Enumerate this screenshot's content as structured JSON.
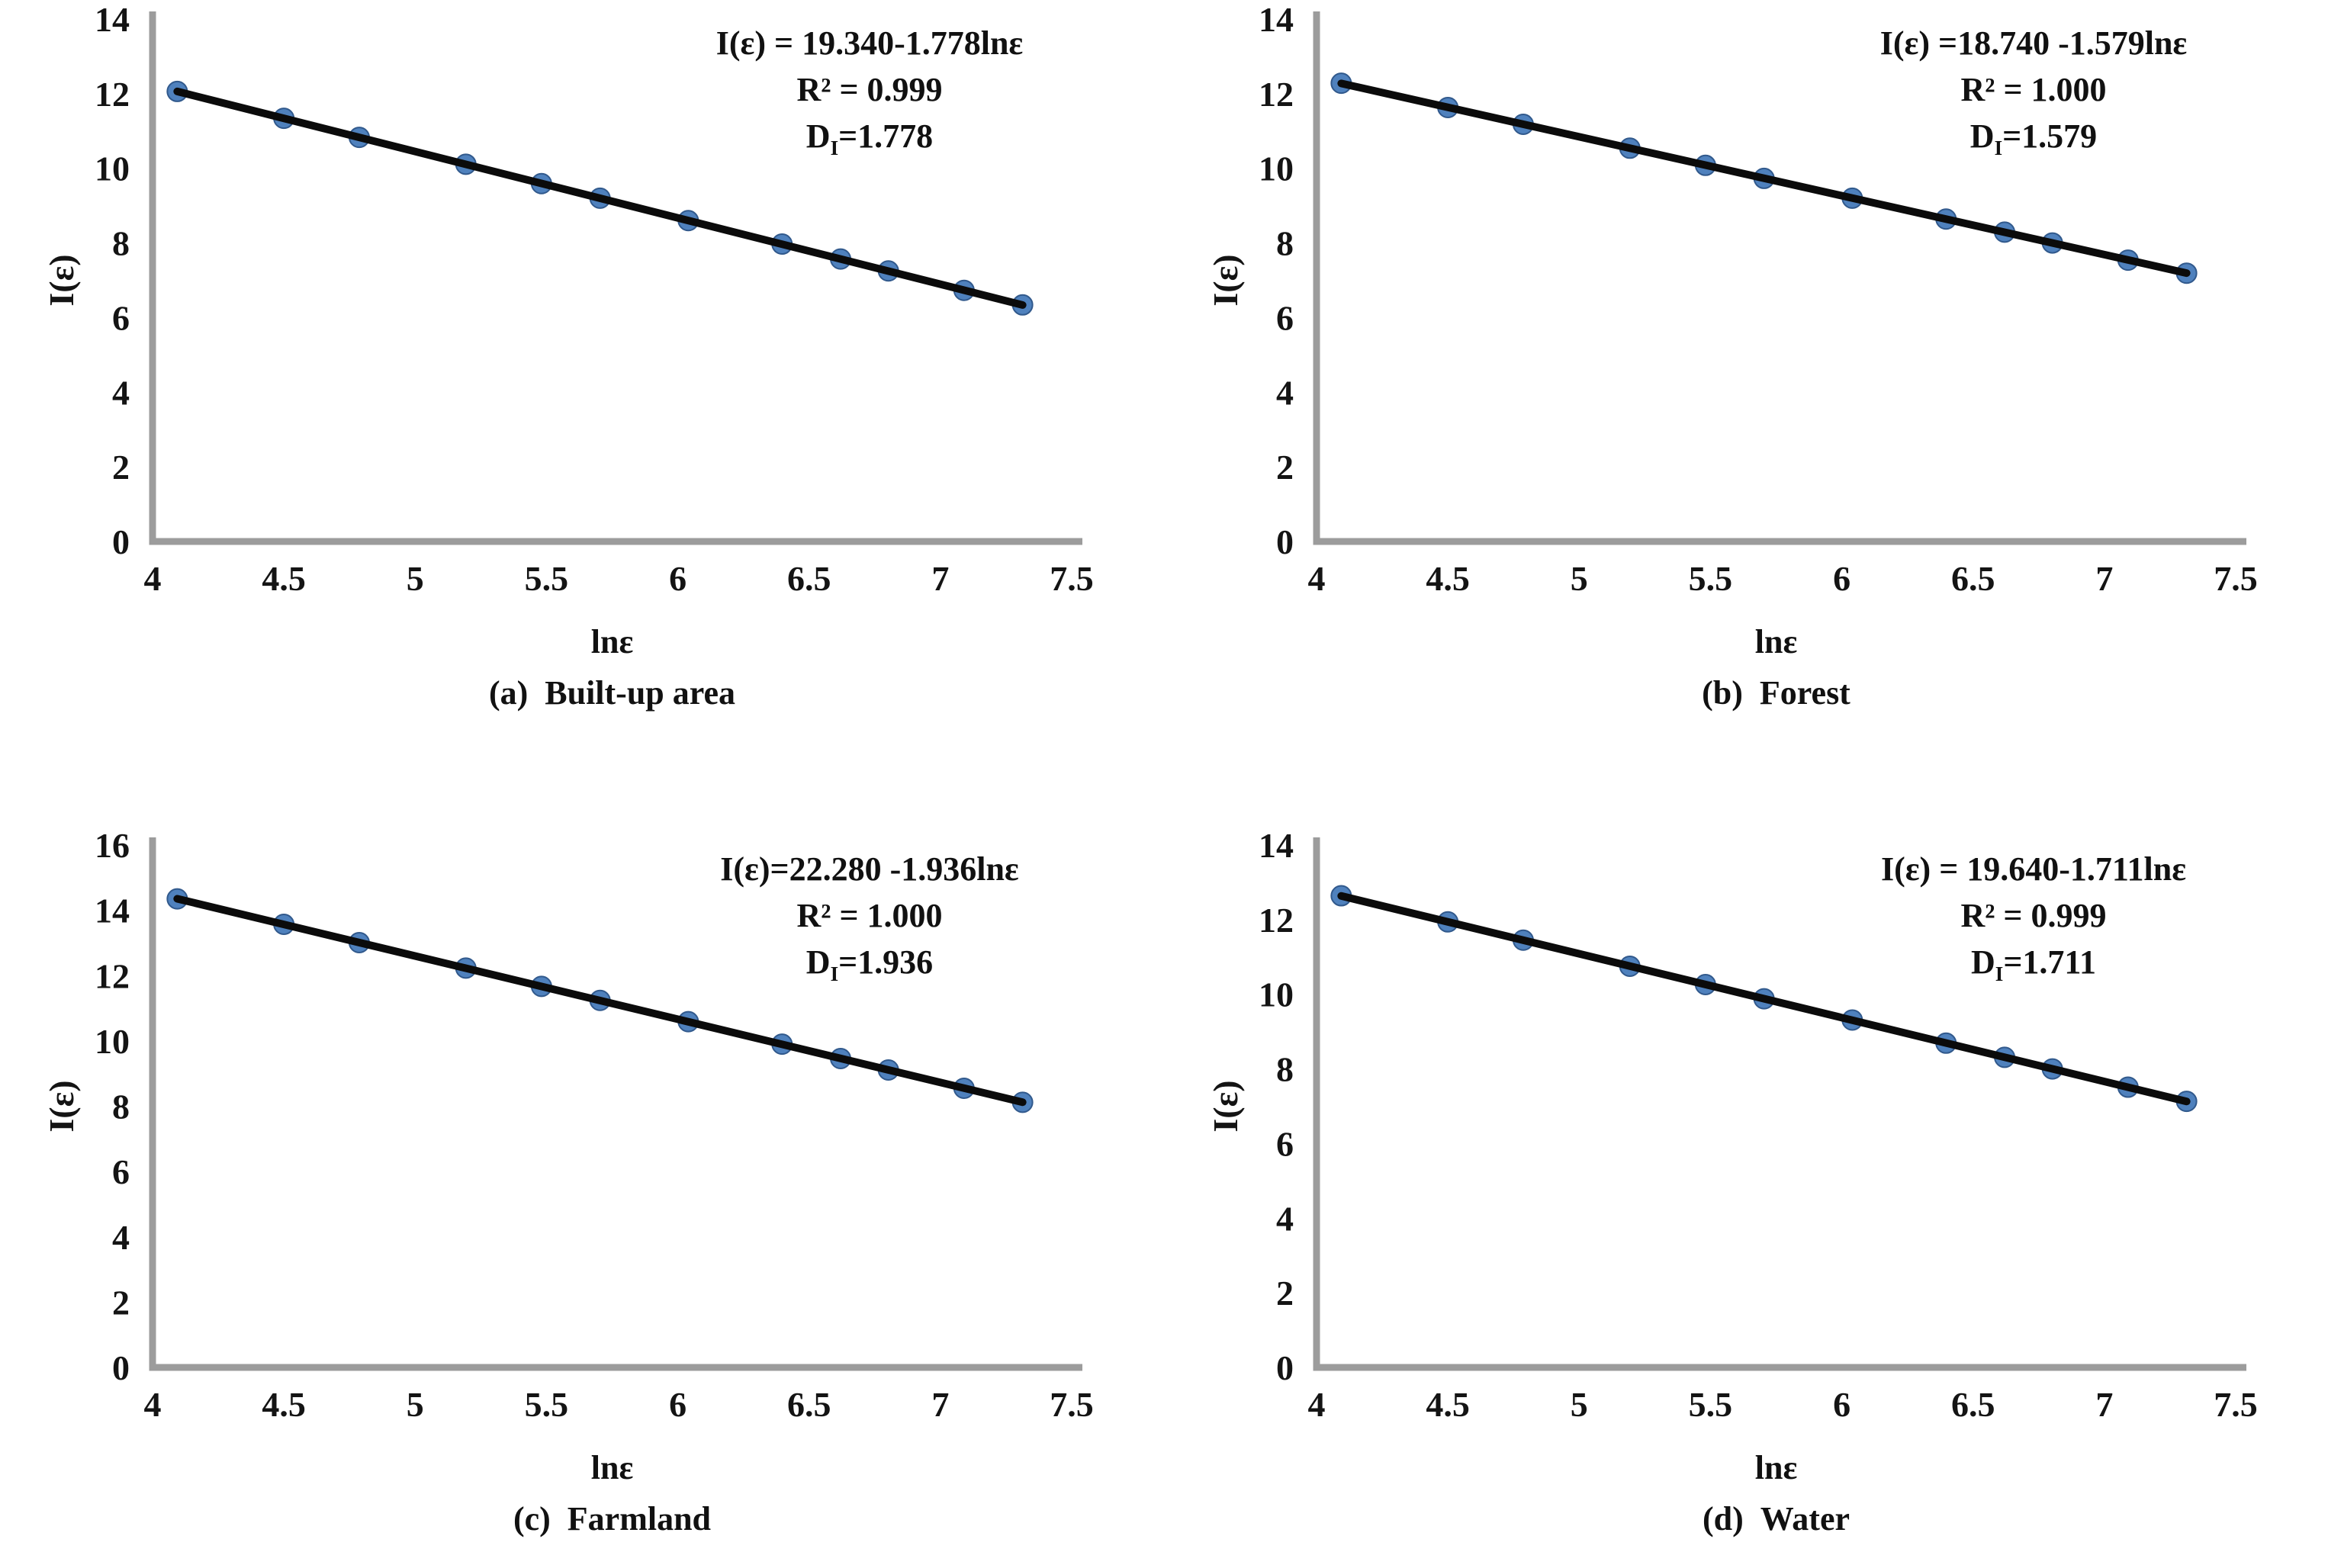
{
  "chart_data": [
    {
      "type": "scatter",
      "panel": "a",
      "caption": {
        "tag": "(a)",
        "text": "Built-up area"
      },
      "xlabel": "lnε",
      "ylabel": "I(ε)",
      "xlim": [
        4,
        7.5
      ],
      "ylim": [
        0,
        14
      ],
      "xticks": [
        "4",
        "4.5",
        "5",
        "5.5",
        "6",
        "6.5",
        "7",
        "7.5"
      ],
      "yticks": [
        0,
        2,
        4,
        6,
        8,
        10,
        12,
        14
      ],
      "x": [
        4.094,
        4.5,
        4.787,
        5.193,
        5.481,
        5.704,
        6.04,
        6.397,
        6.62,
        6.802,
        7.09,
        7.313
      ],
      "y": [
        12.06,
        11.34,
        10.83,
        10.11,
        9.59,
        9.2,
        8.6,
        7.97,
        7.57,
        7.25,
        6.73,
        6.34
      ],
      "fit": {
        "intercept": 19.34,
        "slope": -1.778
      },
      "annotation": {
        "equation": "I(ε) = 19.340-1.778lnε",
        "r2": "R² = 0.999",
        "d_base": "D",
        "d_sub": "I",
        "d_value": "=1.778"
      },
      "grid": false,
      "marker_color": "#4f81bd",
      "marker_edge_color": "#31598c",
      "line_color": "#0b0b0b",
      "axis_color": "#9c9c9c"
    },
    {
      "type": "scatter",
      "panel": "b",
      "caption": {
        "tag": "(b)",
        "text": "Forest"
      },
      "xlabel": "lnε",
      "ylabel": "I(ε)",
      "xlim": [
        4,
        7.5
      ],
      "ylim": [
        0,
        14
      ],
      "xticks": [
        "4",
        "4.5",
        "5",
        "5.5",
        "6",
        "6.5",
        "7",
        "7.5"
      ],
      "yticks": [
        0,
        2,
        4,
        6,
        8,
        10,
        12,
        14
      ],
      "x": [
        4.094,
        4.5,
        4.787,
        5.193,
        5.481,
        5.704,
        6.04,
        6.397,
        6.62,
        6.802,
        7.09,
        7.313
      ],
      "y": [
        12.28,
        11.63,
        11.18,
        10.54,
        10.08,
        9.73,
        9.2,
        8.64,
        8.29,
        8.0,
        7.54,
        7.19
      ],
      "fit": {
        "intercept": 18.74,
        "slope": -1.579
      },
      "annotation": {
        "equation": "I(ε) =18.740 -1.579lnε",
        "r2": "R² = 1.000",
        "d_base": "D",
        "d_sub": "I",
        "d_value": "=1.579"
      },
      "grid": false,
      "marker_color": "#4f81bd",
      "marker_edge_color": "#31598c",
      "line_color": "#0b0b0b",
      "axis_color": "#9c9c9c"
    },
    {
      "type": "scatter",
      "panel": "c",
      "caption": {
        "tag": "(c)",
        "text": "Farmland"
      },
      "xlabel": "lnε",
      "ylabel": "I(ε)",
      "xlim": [
        4,
        7.5
      ],
      "ylim": [
        0,
        16
      ],
      "xticks": [
        "4",
        "4.5",
        "5",
        "5.5",
        "6",
        "6.5",
        "7",
        "7.5"
      ],
      "yticks": [
        0,
        2,
        4,
        6,
        8,
        10,
        12,
        14,
        16
      ],
      "x": [
        4.094,
        4.5,
        4.787,
        5.193,
        5.481,
        5.704,
        6.04,
        6.397,
        6.62,
        6.802,
        7.09,
        7.313
      ],
      "y": [
        14.35,
        13.57,
        13.01,
        12.23,
        11.67,
        11.24,
        10.59,
        9.9,
        9.46,
        9.11,
        8.55,
        8.12
      ],
      "fit": {
        "intercept": 22.28,
        "slope": -1.936
      },
      "annotation": {
        "equation": "I(ε)=22.280 -1.936lnε",
        "r2": "R² = 1.000",
        "d_base": "D",
        "d_sub": "I",
        "d_value": "=1.936"
      },
      "grid": false,
      "marker_color": "#4f81bd",
      "marker_edge_color": "#31598c",
      "line_color": "#0b0b0b",
      "axis_color": "#9c9c9c"
    },
    {
      "type": "scatter",
      "panel": "d",
      "caption": {
        "tag": "(d)",
        "text": "Water"
      },
      "xlabel": "lnε",
      "ylabel": "I(ε)",
      "xlim": [
        4,
        7.5
      ],
      "ylim": [
        0,
        14
      ],
      "xticks": [
        "4",
        "4.5",
        "5",
        "5.5",
        "6",
        "6.5",
        "7",
        "7.5"
      ],
      "yticks": [
        0,
        2,
        4,
        6,
        8,
        10,
        12,
        14
      ],
      "x": [
        4.094,
        4.5,
        4.787,
        5.193,
        5.481,
        5.704,
        6.04,
        6.397,
        6.62,
        6.802,
        7.09,
        7.313
      ],
      "y": [
        12.64,
        11.94,
        11.45,
        10.75,
        10.26,
        9.88,
        9.31,
        8.69,
        8.31,
        8.0,
        7.51,
        7.13
      ],
      "fit": {
        "intercept": 19.64,
        "slope": -1.711
      },
      "annotation": {
        "equation": "I(ε) = 19.640-1.711lnε",
        "r2": "R² = 0.999",
        "d_base": "D",
        "d_sub": "I",
        "d_value": "=1.711"
      },
      "grid": false,
      "marker_color": "#4f81bd",
      "marker_edge_color": "#31598c",
      "line_color": "#0b0b0b",
      "axis_color": "#9c9c9c"
    }
  ]
}
